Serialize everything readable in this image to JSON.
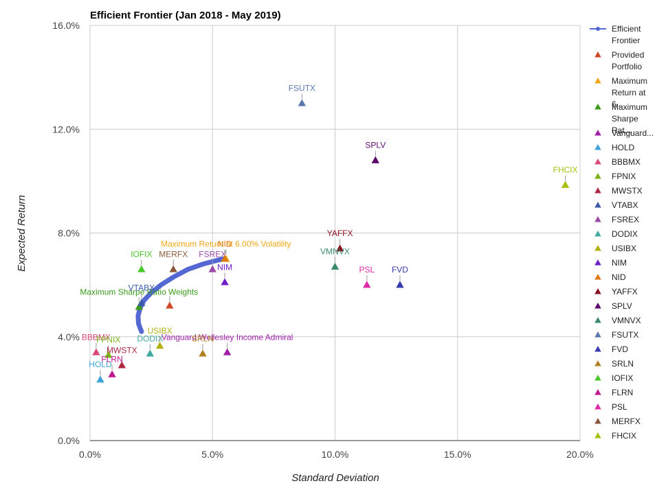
{
  "chart_data": {
    "type": "scatter",
    "title": "Efficient Frontier (Jan 2018 - May 2019)",
    "xlabel": "Standard Deviation",
    "ylabel": "Expected Return",
    "xlim": [
      0,
      0.2
    ],
    "ylim": [
      0,
      0.16
    ],
    "x_ticks": [
      {
        "value": 0.0,
        "label": "0.0%"
      },
      {
        "value": 0.05,
        "label": "5.0%"
      },
      {
        "value": 0.1,
        "label": "10.0%"
      },
      {
        "value": 0.15,
        "label": "15.0%"
      },
      {
        "value": 0.2,
        "label": "20.0%"
      }
    ],
    "y_ticks": [
      {
        "value": 0.0,
        "label": "0.0%"
      },
      {
        "value": 0.04,
        "label": "4.0%"
      },
      {
        "value": 0.08,
        "label": "8.0%"
      },
      {
        "value": 0.12,
        "label": "12.0%"
      },
      {
        "value": 0.16,
        "label": "16.0%"
      }
    ],
    "grid": true,
    "legend_position": "right",
    "frontier": {
      "name": "Efficient Frontier",
      "color": "#5468d4",
      "points": [
        [
          0.021,
          0.042
        ],
        [
          0.0198,
          0.045
        ],
        [
          0.0196,
          0.048
        ],
        [
          0.0204,
          0.051
        ],
        [
          0.022,
          0.054
        ],
        [
          0.025,
          0.057
        ],
        [
          0.029,
          0.06
        ],
        [
          0.034,
          0.063
        ],
        [
          0.04,
          0.066
        ],
        [
          0.046,
          0.068
        ],
        [
          0.052,
          0.0695
        ],
        [
          0.0545,
          0.07
        ]
      ]
    },
    "points": [
      {
        "name": "Provided Portfolio",
        "label": "",
        "x": 0.0325,
        "y": 0.052,
        "color": "#d04a2a"
      },
      {
        "name": "Maximum Return at 6...",
        "label": "Maximum Return at 6.00% Volatility",
        "x": 0.0555,
        "y": 0.07,
        "color": "#f0a818"
      },
      {
        "name": "Maximum Sharpe Rat...",
        "label": "Maximum Sharpe Ratio Weights",
        "x": 0.02,
        "y": 0.0515,
        "color": "#3a9a1a"
      },
      {
        "name": "Vanguard...",
        "label": "Vanguard Wellesley Income Admiral",
        "x": 0.056,
        "y": 0.034,
        "color": "#a020a8"
      },
      {
        "name": "HOLD",
        "label": "HOLD",
        "x": 0.0042,
        "y": 0.0235,
        "color": "#3fa2d8"
      },
      {
        "name": "BBBMX",
        "label": "BBBMX",
        "x": 0.0025,
        "y": 0.034,
        "color": "#d8487a"
      },
      {
        "name": "FPNIX",
        "label": "FPNIX",
        "x": 0.0075,
        "y": 0.033,
        "color": "#7ab21a"
      },
      {
        "name": "MWSTX",
        "label": "MWSTX",
        "x": 0.013,
        "y": 0.029,
        "color": "#b02844"
      },
      {
        "name": "VTABX",
        "label": "VTABX",
        "x": 0.021,
        "y": 0.053,
        "color": "#3a5aa8"
      },
      {
        "name": "FSREX",
        "label": "FSREX",
        "x": 0.05,
        "y": 0.066,
        "color": "#9a4aa8"
      },
      {
        "name": "DODIX",
        "label": "DODIX",
        "x": 0.0245,
        "y": 0.0335,
        "color": "#40a8a0"
      },
      {
        "name": "USIBX",
        "label": "USIBX",
        "x": 0.0285,
        "y": 0.0365,
        "color": "#b0b010"
      },
      {
        "name": "NIM",
        "label": "NIM",
        "x": 0.055,
        "y": 0.061,
        "color": "#7020c8"
      },
      {
        "name": "NID",
        "label": "NID",
        "x": 0.055,
        "y": 0.07,
        "color": "#e07a10"
      },
      {
        "name": "YAFFX",
        "label": "YAFFX",
        "x": 0.102,
        "y": 0.074,
        "color": "#8a1020"
      },
      {
        "name": "SPLV",
        "label": "SPLV",
        "x": 0.1165,
        "y": 0.108,
        "color": "#5a0a6a"
      },
      {
        "name": "VMNVX",
        "label": "VMNVX",
        "x": 0.1,
        "y": 0.067,
        "color": "#3a8a6a"
      },
      {
        "name": "FSUTX",
        "label": "FSUTX",
        "x": 0.0865,
        "y": 0.13,
        "color": "#5a78b0"
      },
      {
        "name": "FVD",
        "label": "FVD",
        "x": 0.1265,
        "y": 0.06,
        "color": "#3a3ab0"
      },
      {
        "name": "SRLN",
        "label": "SRLN",
        "x": 0.046,
        "y": 0.0335,
        "color": "#b08020"
      },
      {
        "name": "IOFIX",
        "label": "IOFIX",
        "x": 0.021,
        "y": 0.066,
        "color": "#4ac82a"
      },
      {
        "name": "FLRN",
        "label": "FLRN",
        "x": 0.009,
        "y": 0.0255,
        "color": "#c01890"
      },
      {
        "name": "PSL",
        "label": "PSL",
        "x": 0.113,
        "y": 0.06,
        "color": "#e02aa8"
      },
      {
        "name": "MERFX",
        "label": "MERFX",
        "x": 0.034,
        "y": 0.066,
        "color": "#8a5a3a"
      },
      {
        "name": "FHCIX",
        "label": "FHCIX",
        "x": 0.194,
        "y": 0.0985,
        "color": "#a8c010"
      }
    ]
  }
}
